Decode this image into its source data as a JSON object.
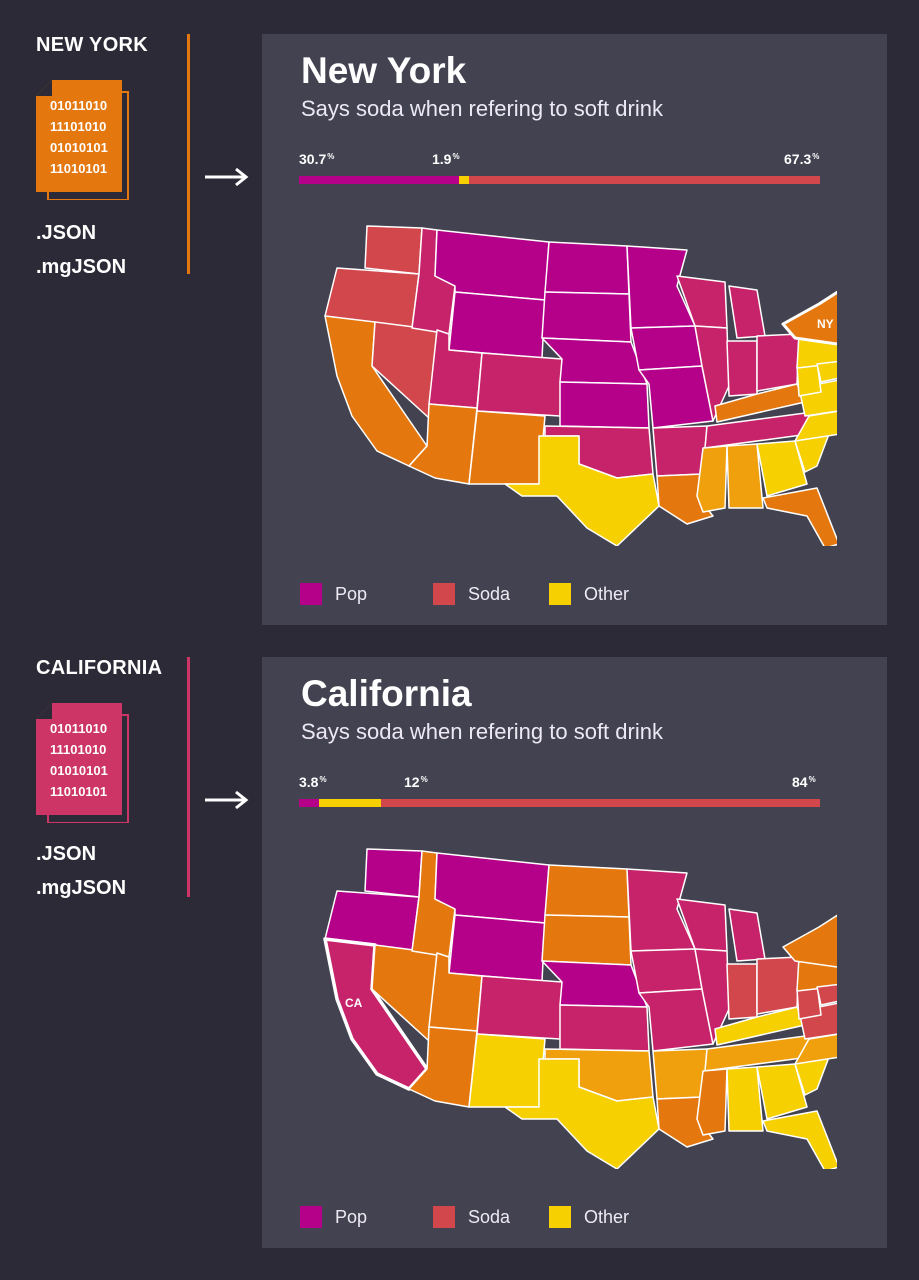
{
  "colors": {
    "background": "#2b2a36",
    "card": "#434250",
    "pop": "#b5008a",
    "pop_mid": "#c7236a",
    "soda": "#d2474b",
    "orange": "#e4780f",
    "orange_light": "#f0a00c",
    "other": "#f6d000"
  },
  "sections": [
    {
      "label": "NEW YORK",
      "file_icon": "binary-file-icon",
      "file_color": "#e4780f",
      "binary_lines": [
        "01011010",
        "11101010",
        "01010101",
        "11010101"
      ],
      "extensions": [
        ".JSON",
        ".mgJSON"
      ],
      "card": {
        "title": "New York",
        "subtitle": "Says soda when refering to soft drink",
        "pop_pct": 30.7,
        "other_pct": 1.9,
        "soda_pct": 67.3,
        "pop_label": "30.7",
        "other_label": "1.9",
        "soda_label": "67.3",
        "pct_symbol": "%",
        "highlight_state": "NY"
      }
    },
    {
      "label": "CALIFORNIA",
      "file_icon": "binary-file-icon",
      "file_color": "#cc3565",
      "binary_lines": [
        "01011010",
        "11101010",
        "01010101",
        "11010101"
      ],
      "extensions": [
        ".JSON",
        ".mgJSON"
      ],
      "card": {
        "title": "California",
        "subtitle": "Says soda when refering to soft drink",
        "pop_pct": 3.8,
        "other_pct": 12,
        "soda_pct": 84,
        "pop_label": "3.8",
        "other_label": "12",
        "soda_label": "84",
        "pct_symbol": "%",
        "highlight_state": "CA"
      }
    }
  ],
  "legend": {
    "pop": "Pop",
    "soda": "Soda",
    "other": "Other"
  }
}
